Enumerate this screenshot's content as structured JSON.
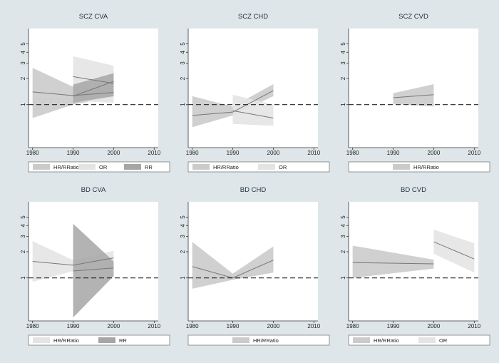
{
  "chart_data": [
    {
      "type": "area",
      "title": "SCZ CVA",
      "x_ticks": [
        1980,
        1990,
        2000,
        2010
      ],
      "y_ticks": [
        1,
        2,
        3,
        4,
        5
      ],
      "xlim": [
        1979,
        2011
      ],
      "ylim": [
        0.32,
        7.5
      ],
      "y_scale": "log",
      "reference_line": 1,
      "series": [
        {
          "name": "HR/RRatio",
          "style": "mid",
          "x": [
            1980,
            1990,
            2000
          ],
          "y": [
            1.4,
            1.27,
            1.38
          ],
          "lower": [
            0.7,
            1.0,
            1.22
          ],
          "upper": [
            2.65,
            1.6,
            1.55
          ]
        },
        {
          "name": "OR",
          "style": "light",
          "x": [
            1990,
            2000
          ],
          "y": [
            2.1,
            1.75
          ],
          "lower": [
            1.1,
            1.05
          ],
          "upper": [
            3.6,
            2.8
          ]
        },
        {
          "name": "RR",
          "style": "dark",
          "x": [
            1990,
            2000
          ],
          "y": [
            1.25,
            1.85
          ],
          "lower": [
            1.05,
            1.25
          ],
          "upper": [
            1.7,
            2.3
          ]
        }
      ]
    },
    {
      "type": "area",
      "title": "SCZ CHD",
      "x_ticks": [
        1980,
        1990,
        2000,
        2010
      ],
      "y_ticks": [
        1,
        2,
        3,
        4,
        5
      ],
      "xlim": [
        1979,
        2011
      ],
      "ylim": [
        0.32,
        7.5
      ],
      "y_scale": "log",
      "reference_line": 1,
      "series": [
        {
          "name": "HR/RRatio",
          "style": "mid",
          "x": [
            1980,
            1990,
            2000
          ],
          "y": [
            0.75,
            0.82,
            1.45
          ],
          "lower": [
            0.55,
            0.75,
            1.25
          ],
          "upper": [
            1.25,
            0.95,
            1.72
          ]
        },
        {
          "name": "OR",
          "style": "light",
          "x": [
            1990,
            2000
          ],
          "y": [
            0.85,
            0.7
          ],
          "lower": [
            0.6,
            0.57
          ],
          "upper": [
            1.3,
            1.0
          ]
        }
      ]
    },
    {
      "type": "area",
      "title": "SCZ CVD",
      "x_ticks": [
        1980,
        1990,
        2000,
        2010
      ],
      "y_ticks": [
        1,
        2,
        3,
        4,
        5
      ],
      "xlim": [
        1979,
        2011
      ],
      "ylim": [
        0.32,
        7.5
      ],
      "y_scale": "log",
      "reference_line": 1,
      "series": [
        {
          "name": "HR/RRatio",
          "style": "mid",
          "x": [
            1990,
            2000
          ],
          "y": [
            1.2,
            1.3
          ],
          "lower": [
            1.02,
            0.95
          ],
          "upper": [
            1.35,
            1.72
          ]
        }
      ]
    },
    {
      "type": "area",
      "title": "BD CVA",
      "x_ticks": [
        1980,
        1990,
        2000,
        2010
      ],
      "y_ticks": [
        1,
        2,
        3,
        4,
        5
      ],
      "xlim": [
        1979,
        2011
      ],
      "ylim": [
        0.32,
        7.5
      ],
      "y_scale": "log",
      "reference_line": 1,
      "series": [
        {
          "name": "HR/RRatio",
          "style": "light",
          "x": [
            1980,
            1990,
            2000
          ],
          "y": [
            1.55,
            1.4,
            1.7
          ],
          "lower": [
            0.9,
            1.2,
            1.3
          ],
          "upper": [
            2.65,
            1.6,
            2.05
          ]
        },
        {
          "name": "RR",
          "style": "dark",
          "x": [
            1990,
            2000
          ],
          "y": [
            1.2,
            1.3
          ],
          "lower": [
            0.35,
            1.05
          ],
          "upper": [
            4.2,
            1.55
          ]
        }
      ]
    },
    {
      "type": "area",
      "title": "BD CHD",
      "x_ticks": [
        1980,
        1990,
        2000,
        2010
      ],
      "y_ticks": [
        1,
        2,
        3,
        4,
        5
      ],
      "xlim": [
        1979,
        2011
      ],
      "ylim": [
        0.32,
        7.5
      ],
      "y_scale": "log",
      "reference_line": 1,
      "series": [
        {
          "name": "HR/RRatio",
          "style": "mid",
          "x": [
            1980,
            1990,
            2000
          ],
          "y": [
            1.35,
            1.0,
            1.6
          ],
          "lower": [
            0.75,
            0.95,
            1.15
          ],
          "upper": [
            2.6,
            1.12,
            2.3
          ]
        }
      ]
    },
    {
      "type": "area",
      "title": "BD CVD",
      "x_ticks": [
        1980,
        1990,
        2000,
        2010
      ],
      "y_ticks": [
        1,
        2,
        3,
        4,
        5
      ],
      "xlim": [
        1979,
        2011
      ],
      "ylim": [
        0.32,
        7.5
      ],
      "y_scale": "log",
      "reference_line": 1,
      "series": [
        {
          "name": "HR/RRatio",
          "style": "mid",
          "x": [
            1980,
            2000
          ],
          "y": [
            1.5,
            1.45
          ],
          "lower": [
            1.0,
            1.28
          ],
          "upper": [
            2.35,
            1.62
          ]
        },
        {
          "name": "OR",
          "style": "light",
          "x": [
            2000,
            2010
          ],
          "y": [
            2.6,
            1.65
          ],
          "lower": [
            1.9,
            1.15
          ],
          "upper": [
            3.6,
            2.5
          ]
        }
      ]
    }
  ],
  "colors": {
    "outer_background": "#dfe6ea",
    "plot_background": "#ffffff",
    "title": "#1f2f3a",
    "band_light": "#e4e4e4",
    "band_mid": "#cbcbcb",
    "band_dark": "#a6a6a6",
    "estimate_line": "#777777",
    "reference_line": "#222222",
    "axis": "#333333"
  }
}
